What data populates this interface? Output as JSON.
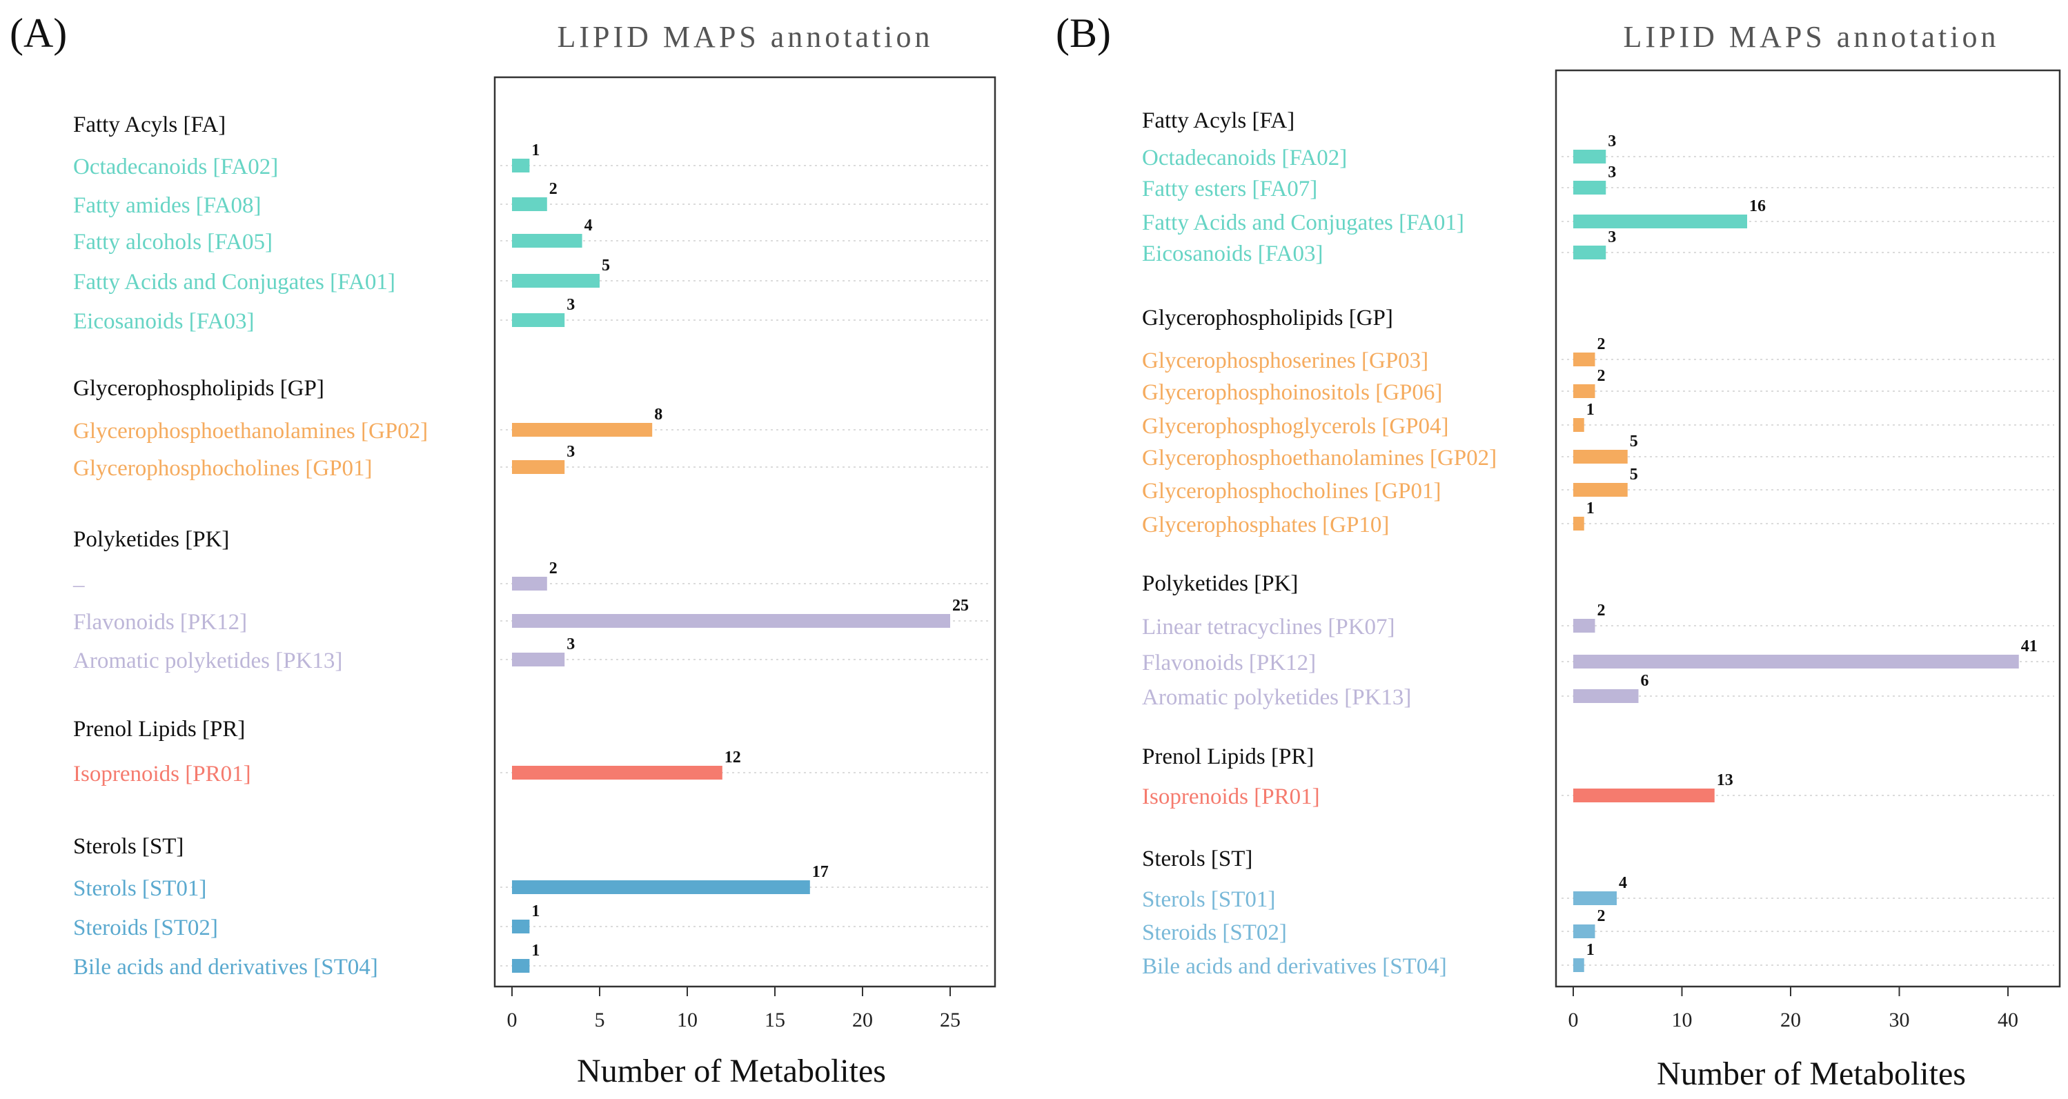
{
  "chart_data": [
    {
      "type": "bar",
      "orientation": "horizontal",
      "panel_label": "(A)",
      "title": "LIPID MAPS annotation",
      "xlabel": "Number of Metabolites",
      "ylabel": "",
      "xlim": [
        0,
        28
      ],
      "xticks": [
        0,
        5,
        10,
        15,
        20,
        25
      ],
      "grid": true,
      "groups": [
        {
          "name": "Fatty Acyls [FA]",
          "color": "#66d4c4",
          "items": [
            {
              "label": "Octadecanoids [FA02]",
              "value": 1
            },
            {
              "label": "Fatty amides [FA08]",
              "value": 2
            },
            {
              "label": "Fatty alcohols [FA05]",
              "value": 4
            },
            {
              "label": "Fatty Acids and Conjugates [FA01]",
              "value": 5
            },
            {
              "label": "Eicosanoids [FA03]",
              "value": 3
            }
          ]
        },
        {
          "name": "Glycerophospholipids [GP]",
          "color": "#f5ab5e",
          "items": [
            {
              "label": "Glycerophosphoethanolamines [GP02]",
              "value": 8
            },
            {
              "label": "Glycerophosphocholines [GP01]",
              "value": 3
            }
          ]
        },
        {
          "name": "Polyketides [PK]",
          "color": "#bdb6d8",
          "items": [
            {
              "label": "–",
              "value": 2
            },
            {
              "label": "Flavonoids [PK12]",
              "value": 25
            },
            {
              "label": "Aromatic polyketides [PK13]",
              "value": 3
            }
          ]
        },
        {
          "name": "Prenol Lipids [PR]",
          "color": "#f57b6e",
          "items": [
            {
              "label": "Isoprenoids [PR01]",
              "value": 12
            }
          ]
        },
        {
          "name": "Sterols [ST]",
          "color": "#5aa9cf",
          "items": [
            {
              "label": "Sterols [ST01]",
              "value": 17
            },
            {
              "label": "Steroids [ST02]",
              "value": 1
            },
            {
              "label": "Bile acids and derivatives [ST04]",
              "value": 1
            }
          ]
        }
      ]
    },
    {
      "type": "bar",
      "orientation": "horizontal",
      "panel_label": "(B)",
      "title": "LIPID MAPS annotation",
      "xlabel": "Number of Metabolites",
      "ylabel": "",
      "xlim": [
        0,
        45
      ],
      "xticks": [
        0,
        10,
        20,
        30,
        40
      ],
      "grid": true,
      "groups": [
        {
          "name": "Fatty Acyls [FA]",
          "color": "#66d4c4",
          "items": [
            {
              "label": "Octadecanoids [FA02]",
              "value": 3
            },
            {
              "label": "Fatty esters [FA07]",
              "value": 3
            },
            {
              "label": "Fatty Acids and Conjugates [FA01]",
              "value": 16
            },
            {
              "label": "Eicosanoids [FA03]",
              "value": 3
            }
          ]
        },
        {
          "name": "Glycerophospholipids [GP]",
          "color": "#f5ab5e",
          "items": [
            {
              "label": "Glycerophosphoserines [GP03]",
              "value": 2
            },
            {
              "label": "Glycerophosphoinositols [GP06]",
              "value": 2
            },
            {
              "label": "Glycerophosphoglycerols [GP04]",
              "value": 1
            },
            {
              "label": "Glycerophosphoethanolamines [GP02]",
              "value": 5
            },
            {
              "label": "Glycerophosphocholines [GP01]",
              "value": 5
            },
            {
              "label": "Glycerophosphates [GP10]",
              "value": 1
            }
          ]
        },
        {
          "name": "Polyketides [PK]",
          "color": "#bdb6d8",
          "items": [
            {
              "label": "Linear tetracyclines [PK07]",
              "value": 2
            },
            {
              "label": "Flavonoids [PK12]",
              "value": 41
            },
            {
              "label": "Aromatic polyketides [PK13]",
              "value": 6
            }
          ]
        },
        {
          "name": "Prenol Lipids [PR]",
          "color": "#f57b6e",
          "items": [
            {
              "label": "Isoprenoids [PR01]",
              "value": 13
            }
          ]
        },
        {
          "name": "Sterols [ST]",
          "color": "#78b8d8",
          "items": [
            {
              "label": "Sterols [ST01]",
              "value": 4
            },
            {
              "label": "Steroids [ST02]",
              "value": 2
            },
            {
              "label": "Bile acids and derivatives [ST04]",
              "value": 1
            }
          ]
        }
      ]
    }
  ]
}
